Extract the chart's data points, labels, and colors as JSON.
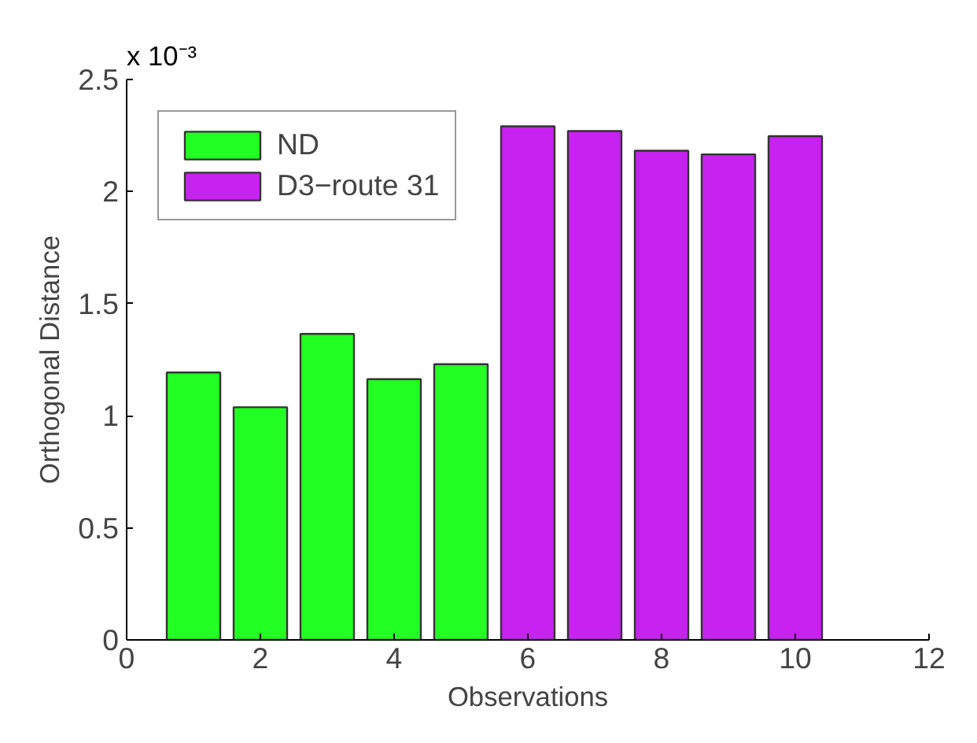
{
  "chart_data": {
    "type": "bar",
    "xlabel": "Observations",
    "ylabel": "Orthogonal Distance",
    "annotations": [
      "x 10⁻³"
    ],
    "series": [
      {
        "name": "ND",
        "color": "#22ff22",
        "x": [
          1,
          2,
          3,
          4,
          5
        ],
        "values": [
          1.193,
          1.038,
          1.365,
          1.163,
          1.23
        ]
      },
      {
        "name": "D3−route 31",
        "color": "#c722f0",
        "x": [
          6,
          7,
          8,
          9,
          10
        ],
        "values": [
          2.291,
          2.27,
          2.182,
          2.166,
          2.247
        ]
      }
    ],
    "xlim": [
      0,
      12
    ],
    "xticks": [
      0,
      2,
      4,
      6,
      8,
      10,
      12
    ],
    "ylim": [
      0,
      2.5
    ],
    "yticks": [
      0,
      0.5,
      1,
      1.5,
      2,
      2.5
    ],
    "grid": false,
    "legend": "top left"
  }
}
